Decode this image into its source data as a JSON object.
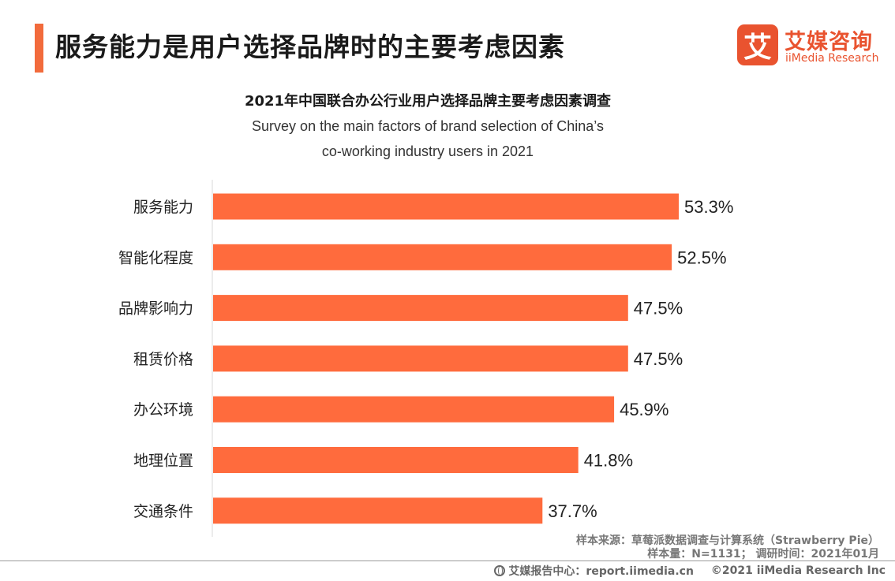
{
  "header": {
    "title": "服务能力是用户选择品牌时的主要考虑因素"
  },
  "logo": {
    "mark": "艾",
    "name_cn": "艾媒咨询",
    "name_en": "iiMedia Research",
    "accent": "#e9532f"
  },
  "chart_data": {
    "type": "bar",
    "orientation": "horizontal",
    "title": "2021年中国联合办公行业用户选择品牌主要考虑因素调查",
    "subtitle_line1": "Survey on the main factors of brand selection of China’s",
    "subtitle_line2": "co-working industry users in 2021",
    "categories": [
      "服务能力",
      "智能化程度",
      "品牌影响力",
      "租赁价格",
      "办公环境",
      "地理位置",
      "交通条件"
    ],
    "values": [
      53.3,
      52.5,
      47.5,
      47.5,
      45.9,
      41.8,
      37.7
    ],
    "value_labels": [
      "53.3%",
      "52.5%",
      "47.5%",
      "47.5%",
      "45.9%",
      "41.8%",
      "37.7%"
    ],
    "unit": "%",
    "xlim": [
      0,
      60
    ],
    "bar_color": "#ff6b3d",
    "grid": false
  },
  "source": {
    "line1": "样本来源：草莓派数据调查与计算系统（Strawberry Pie）",
    "line2": "样本量：N=1131；   调研时间：2021年01月"
  },
  "footer": {
    "site": "艾媒报告中心：report.iimedia.cn",
    "copyright": "©2021  iiMedia Research  Inc"
  }
}
